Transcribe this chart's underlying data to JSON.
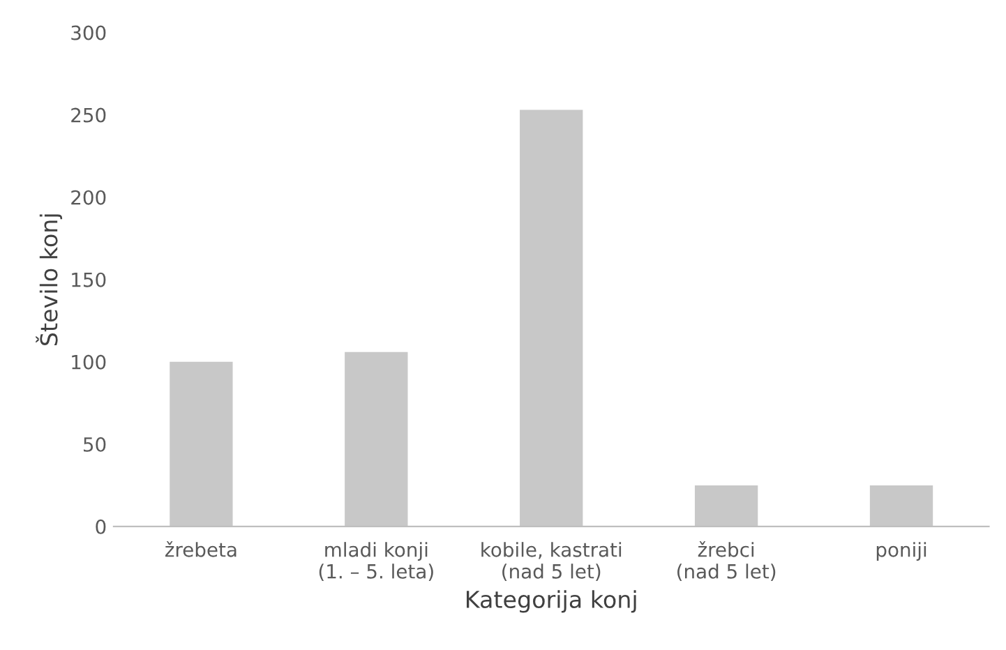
{
  "chart_data": {
    "type": "bar",
    "xlabel": "Kategorija konj",
    "ylabel": "Število konj",
    "categories": [
      "žrebeta",
      "mladi konji\n(1. – 5. leta)",
      "kobile, kastrati\n(nad 5 let)",
      "žrebci\n(nad 5 let)",
      "poniji"
    ],
    "values": [
      100,
      106,
      253,
      25,
      25
    ],
    "color": "#c8c8c8",
    "ylim": [
      0,
      300
    ],
    "yticks": [
      0,
      50,
      100,
      150,
      200,
      250,
      300
    ],
    "grid": false
  }
}
